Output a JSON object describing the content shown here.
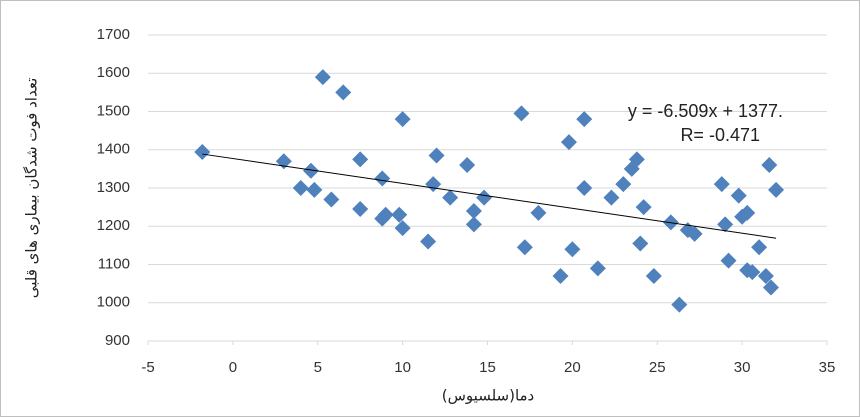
{
  "chart_data": {
    "type": "scatter",
    "x_label": "دما(سلسیوس)",
    "y_label": "تعداد فوت شدگان بیماری های قلبی",
    "color": "#4f81bd",
    "x": [
      -1.8,
      3.0,
      4.0,
      4.6,
      4.8,
      5.3,
      5.8,
      6.5,
      7.5,
      7.5,
      8.8,
      8.8,
      9.0,
      9.8,
      10.0,
      10.0,
      11.5,
      11.8,
      12.0,
      12.8,
      13.8,
      14.2,
      14.2,
      14.8,
      17.0,
      17.2,
      18.0,
      19.3,
      19.8,
      20.0,
      20.7,
      20.7,
      21.5,
      22.3,
      23.0,
      23.5,
      23.8,
      24.0,
      24.2,
      24.8,
      25.8,
      26.3,
      26.8,
      27.2,
      28.8,
      29.0,
      29.2,
      29.8,
      30.0,
      30.3,
      30.3,
      30.6,
      31.0,
      31.4,
      31.6,
      31.7,
      32.0
    ],
    "values": [
      1394,
      1370,
      1300,
      1345,
      1295,
      1590,
      1270,
      1550,
      1375,
      1245,
      1325,
      1220,
      1230,
      1230,
      1480,
      1195,
      1160,
      1310,
      1385,
      1275,
      1360,
      1240,
      1205,
      1275,
      1495,
      1145,
      1235,
      1070,
      1420,
      1140,
      1300,
      1480,
      1090,
      1275,
      1310,
      1350,
      1375,
      1155,
      1250,
      1070,
      1210,
      995,
      1190,
      1180,
      1310,
      1205,
      1110,
      1280,
      1225,
      1235,
      1085,
      1080,
      1145,
      1070,
      1360,
      1040,
      1295
    ],
    "trendline": {
      "slope": -6.509,
      "intercept": 1377,
      "label": "y = -6.509x + 1377.",
      "r_label": "R= -0.471"
    },
    "xlim": [
      -5,
      35
    ],
    "xticks": [
      -5,
      0,
      5,
      10,
      15,
      20,
      25,
      30,
      35
    ],
    "ylim": [
      900,
      1700
    ],
    "yticks": [
      900,
      1000,
      1100,
      1200,
      1300,
      1400,
      1500,
      1600,
      1700
    ],
    "grid": true
  }
}
